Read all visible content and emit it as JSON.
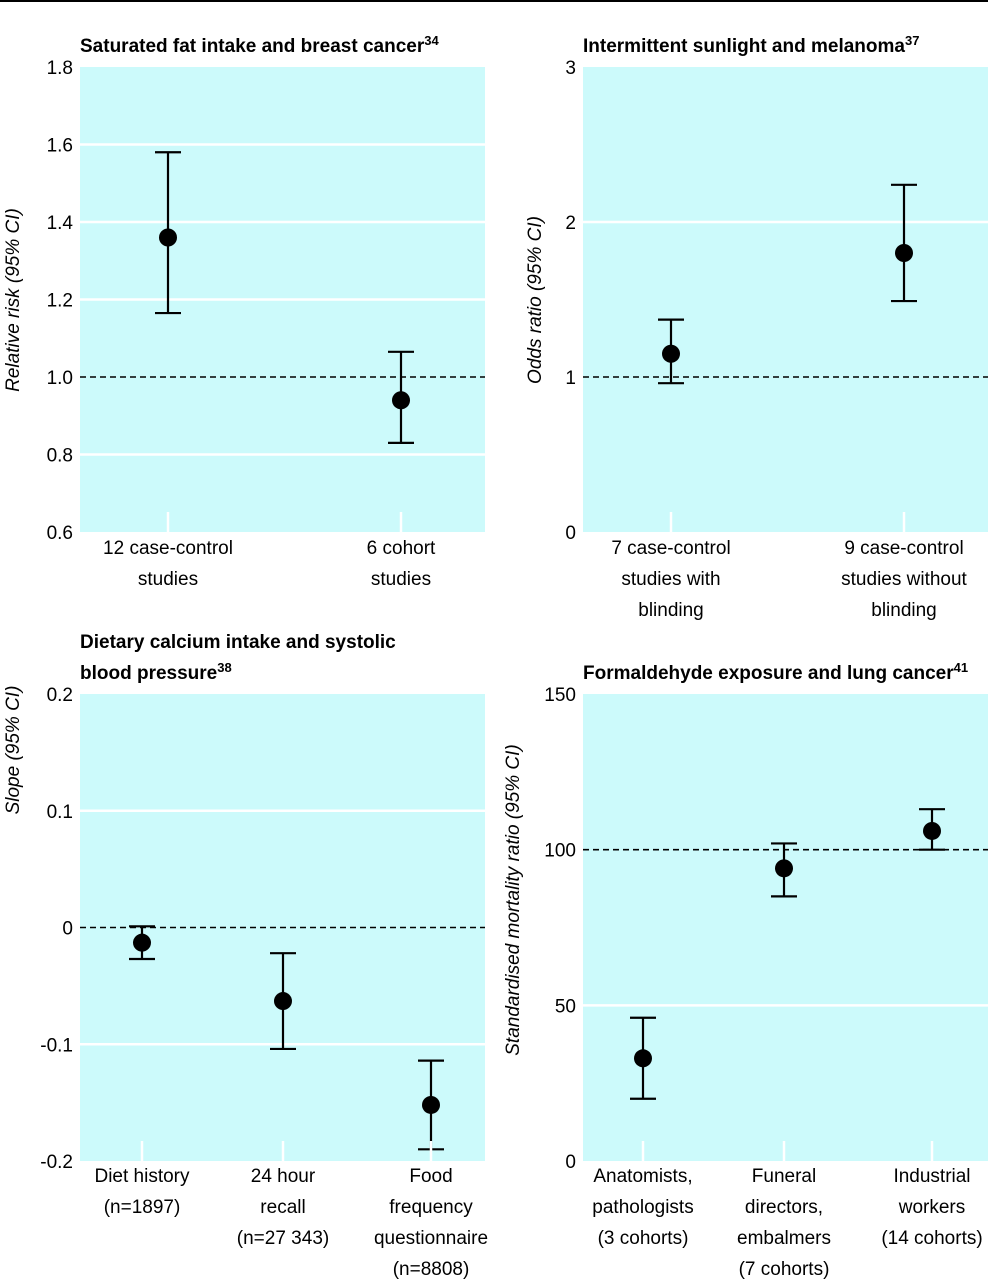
{
  "figure": {
    "colors": {
      "plot_background": "#ccfafb",
      "gridline": "#ffffff",
      "marker": "#000000",
      "reference_line": "#000000"
    }
  },
  "chart_data": [
    {
      "type": "scatter",
      "subtype": "point-estimate-with-95%-ci",
      "title": "Saturated fat intake and breast cancer",
      "title_superscript": "34",
      "ylabel": "Relative risk (95% CI)",
      "ylim": [
        0.6,
        1.8
      ],
      "yticks": [
        0.6,
        0.8,
        1.0,
        1.2,
        1.4,
        1.6,
        1.8
      ],
      "ytick_labels": [
        "0.6",
        "0.8",
        "1.0",
        "1.2",
        "1.4",
        "1.6",
        "1.8"
      ],
      "reference_line": 1.0,
      "grid": true,
      "categories": [
        [
          "12 case-control",
          "studies"
        ],
        [
          "6 cohort",
          "studies"
        ]
      ],
      "estimates": [
        1.36,
        0.94
      ],
      "ci_lower": [
        1.165,
        0.83
      ],
      "ci_upper": [
        1.58,
        1.065
      ]
    },
    {
      "type": "scatter",
      "subtype": "point-estimate-with-95%-ci",
      "title": "Intermittent sunlight and melanoma",
      "title_superscript": "37",
      "ylabel": "Odds ratio (95% CI)",
      "ylim": [
        0,
        3
      ],
      "yticks": [
        0,
        1,
        2,
        3
      ],
      "ytick_labels": [
        "0",
        "1",
        "2",
        "3"
      ],
      "reference_line": 1,
      "grid": true,
      "categories": [
        [
          "7 case-control",
          "studies with",
          "blinding"
        ],
        [
          "9 case-control",
          "studies without",
          "blinding"
        ]
      ],
      "estimates": [
        1.15,
        1.8
      ],
      "ci_lower": [
        0.96,
        1.49
      ],
      "ci_upper": [
        1.37,
        2.24
      ]
    },
    {
      "type": "scatter",
      "subtype": "point-estimate-with-95%-ci",
      "title_lines": [
        "Dietary calcium intake and systolic",
        "blood pressure"
      ],
      "title_superscript": "38",
      "ylabel": "Slope (95% CI)",
      "ylim": [
        -0.2,
        0.2
      ],
      "yticks": [
        -0.2,
        -0.1,
        0,
        0.1,
        0.2
      ],
      "ytick_labels": [
        "-0.2",
        "-0.1",
        "0",
        "0.1",
        "0.2"
      ],
      "reference_line": 0,
      "grid": true,
      "categories": [
        [
          "Diet history",
          "(n=1897)"
        ],
        [
          "24 hour",
          "recall",
          "(n=27 343)"
        ],
        [
          "Food",
          "frequency",
          "questionnaire",
          "(n=8808)"
        ]
      ],
      "estimates": [
        -0.013,
        -0.063,
        -0.152
      ],
      "ci_lower": [
        -0.027,
        -0.104,
        -0.19
      ],
      "ci_upper": [
        0.001,
        -0.022,
        -0.114
      ]
    },
    {
      "type": "scatter",
      "subtype": "point-estimate-with-95%-ci",
      "title": "Formaldehyde exposure and lung cancer",
      "title_superscript": "41",
      "ylabel": "Standardised mortality ratio (95% CI)",
      "ylim": [
        0,
        150
      ],
      "yticks": [
        0,
        50,
        100,
        150
      ],
      "ytick_labels": [
        "0",
        "50",
        "100",
        "150"
      ],
      "reference_line": 100,
      "grid": true,
      "categories": [
        [
          "Anatomists,",
          "pathologists",
          "(3 cohorts)"
        ],
        [
          "Funeral",
          "directors,",
          "embalmers",
          "(7 cohorts)"
        ],
        [
          "Industrial",
          "workers",
          "(14 cohorts)"
        ]
      ],
      "estimates": [
        33,
        94,
        106
      ],
      "ci_lower": [
        20,
        85,
        100
      ],
      "ci_upper": [
        46,
        102,
        113
      ]
    }
  ]
}
